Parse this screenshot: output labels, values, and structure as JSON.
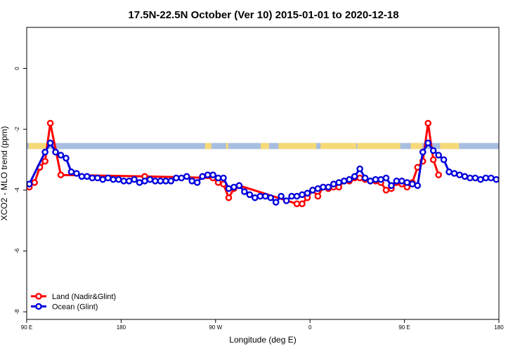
{
  "chart_data": {
    "type": "line",
    "title": "17.5N-22.5N October (Ver 10)   2015-01-01 to 2020-12-18",
    "xlabel": "Longitude (deg E)",
    "ylabel": "XCO2 - MLO trend (ppm)",
    "xlim": [
      90,
      540
    ],
    "ylim": [
      -8.25,
      1.35
    ],
    "x_ticks": [
      {
        "value": 90,
        "label": "90 E"
      },
      {
        "value": 180,
        "label": "180"
      },
      {
        "value": 270,
        "label": "90 W"
      },
      {
        "value": 360,
        "label": "0"
      },
      {
        "value": 450,
        "label": "90 E"
      },
      {
        "value": 540,
        "label": "180"
      }
    ],
    "y_ticks": [
      {
        "value": 0,
        "label": "0"
      },
      {
        "value": -2,
        "label": "-2"
      },
      {
        "value": -4,
        "label": "-4"
      },
      {
        "value": -6,
        "label": "-6"
      },
      {
        "value": -8,
        "label": "-8"
      }
    ],
    "land_mask": {
      "y_top": -2.45,
      "y_bottom": -2.65,
      "ocean_color": "#a7bee0",
      "land_color": "#f6d977",
      "land_ranges": [
        [
          92,
          111
        ],
        [
          260,
          266
        ],
        [
          280,
          282
        ],
        [
          313,
          321
        ],
        [
          330,
          366
        ],
        [
          370,
          404
        ],
        [
          405,
          446
        ],
        [
          456,
          467
        ],
        [
          484,
          502
        ]
      ]
    },
    "legend_position": "bottom-left",
    "series": [
      {
        "name": "Land (Nadir&Glint)",
        "color": "#ff0000",
        "x": [
          92.5,
          97.5,
          102.5,
          107.5,
          112.5,
          122.5,
          202.5,
          267.5,
          272.5,
          277.5,
          282.5,
          287.5,
          292.5,
          347.5,
          352.5,
          357.5,
          362.5,
          367.5,
          372.5,
          377.5,
          382.5,
          387.5,
          392.5,
          397.5,
          402.5,
          407.5,
          412.5,
          417.5,
          422.5,
          427.5,
          432.5,
          437.5,
          442.5,
          447.5,
          452.5,
          457.5,
          462.5,
          467.5,
          472.5,
          477.5,
          482.5
        ],
        "y": [
          -3.9,
          -3.75,
          -3.25,
          -3.05,
          -1.8,
          -3.5,
          -3.55,
          -3.6,
          -3.75,
          -3.8,
          -4.25,
          -3.95,
          -3.85,
          -4.45,
          -4.45,
          -4.25,
          -4.0,
          -4.2,
          -3.9,
          -3.95,
          -3.9,
          -3.9,
          -3.7,
          -3.7,
          -3.6,
          -3.6,
          -3.65,
          -3.7,
          -3.7,
          -3.75,
          -4.0,
          -3.95,
          -3.75,
          -3.8,
          -3.9,
          -3.75,
          -3.25,
          -3.05,
          -1.8,
          -3.0,
          -3.5
        ]
      },
      {
        "name": "Ocean (Glint)",
        "color": "#0000dd",
        "x": [
          92.5,
          107.5,
          112.5,
          117.5,
          122.5,
          127.5,
          132.5,
          137.5,
          142.5,
          147.5,
          152.5,
          157.5,
          162.5,
          167.5,
          172.5,
          177.5,
          182.5,
          187.5,
          192.5,
          197.5,
          202.5,
          207.5,
          212.5,
          217.5,
          222.5,
          227.5,
          232.5,
          237.5,
          242.5,
          247.5,
          252.5,
          257.5,
          262.5,
          267.5,
          272.5,
          277.5,
          282.5,
          287.5,
          292.5,
          297.5,
          302.5,
          307.5,
          312.5,
          317.5,
          322.5,
          327.5,
          332.5,
          337.5,
          342.5,
          347.5,
          352.5,
          357.5,
          362.5,
          367.5,
          372.5,
          377.5,
          382.5,
          387.5,
          392.5,
          397.5,
          402.5,
          407.5,
          412.5,
          417.5,
          422.5,
          427.5,
          432.5,
          437.5,
          442.5,
          447.5,
          452.5,
          457.5,
          462.5,
          467.5,
          472.5,
          477.5,
          482.5,
          487.5,
          492.5,
          497.5,
          502.5,
          507.5,
          512.5,
          517.5,
          522.5,
          527.5,
          532.5,
          537.5
        ],
        "y": [
          -3.8,
          -2.75,
          -2.45,
          -2.75,
          -2.85,
          -2.95,
          -3.4,
          -3.45,
          -3.55,
          -3.55,
          -3.6,
          -3.6,
          -3.65,
          -3.6,
          -3.65,
          -3.65,
          -3.7,
          -3.7,
          -3.65,
          -3.75,
          -3.7,
          -3.65,
          -3.7,
          -3.7,
          -3.7,
          -3.7,
          -3.6,
          -3.6,
          -3.55,
          -3.7,
          -3.75,
          -3.55,
          -3.5,
          -3.5,
          -3.6,
          -3.6,
          -3.95,
          -3.9,
          -3.85,
          -4.05,
          -4.15,
          -4.25,
          -4.2,
          -4.2,
          -4.25,
          -4.4,
          -4.2,
          -4.35,
          -4.2,
          -4.2,
          -4.15,
          -4.1,
          -4.0,
          -3.95,
          -3.9,
          -3.9,
          -3.8,
          -3.75,
          -3.7,
          -3.65,
          -3.55,
          -3.3,
          -3.6,
          -3.7,
          -3.65,
          -3.65,
          -3.6,
          -3.85,
          -3.7,
          -3.7,
          -3.75,
          -3.8,
          -3.85,
          -2.75,
          -2.45,
          -2.7,
          -2.85,
          -3.0,
          -3.4,
          -3.45,
          -3.5,
          -3.55,
          -3.6,
          -3.6,
          -3.65,
          -3.6,
          -3.6,
          -3.65
        ]
      }
    ]
  }
}
